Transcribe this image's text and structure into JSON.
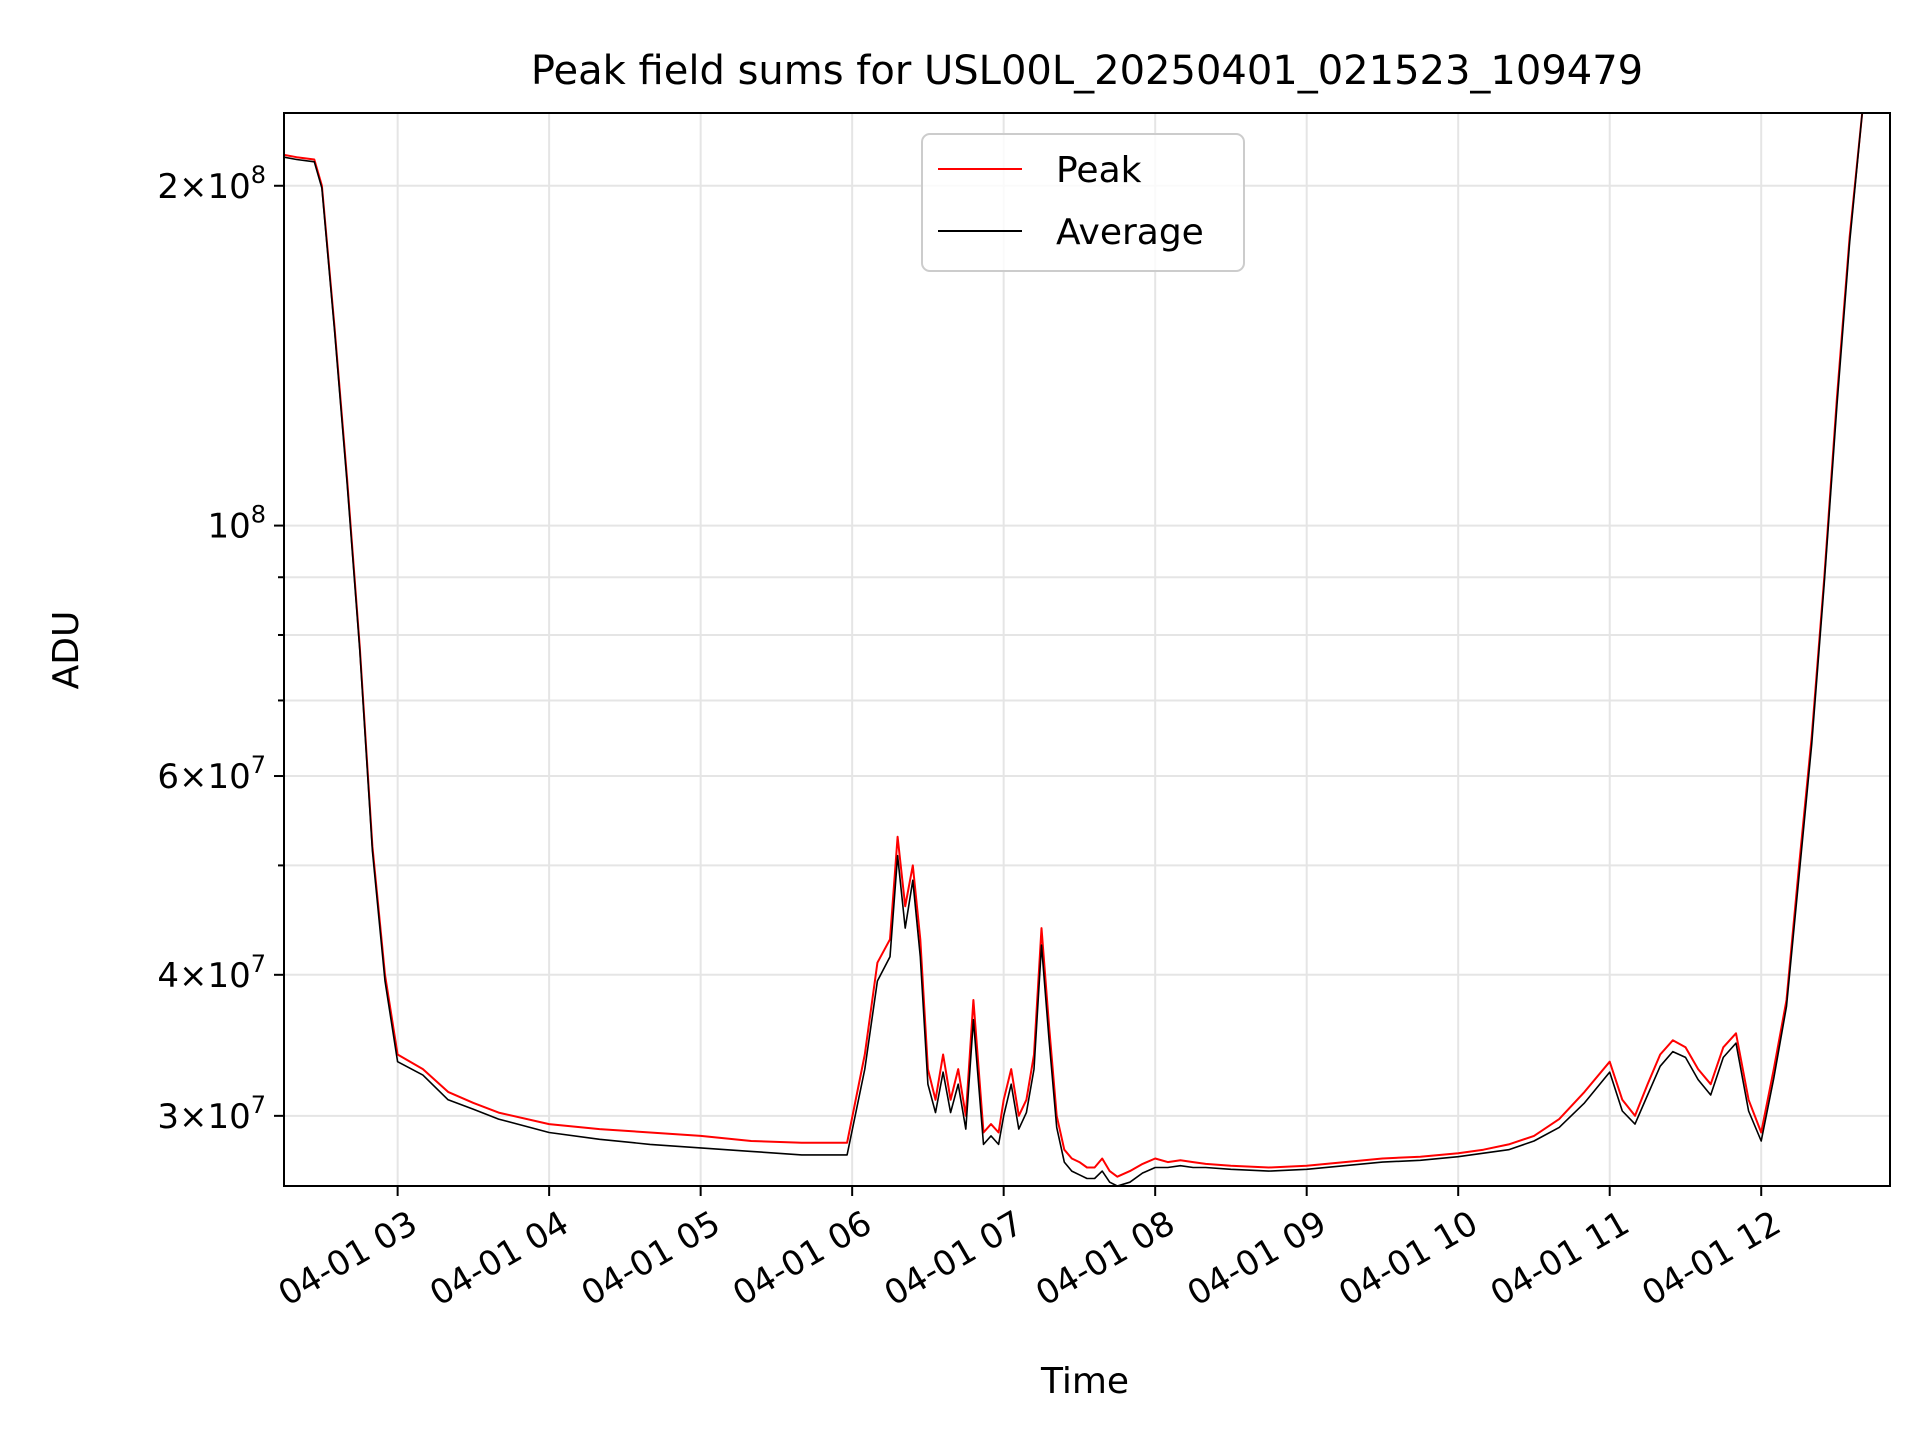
{
  "chart_data": {
    "type": "line",
    "title": "Peak field sums for USL00L_20250401_021523_109479",
    "xlabel": "Time",
    "ylabel": "ADU",
    "yscale": "log",
    "ylim": [
      26000000,
      232000000
    ],
    "xlim": [
      "04-01 02:15",
      "04-01 12:51"
    ],
    "grid": true,
    "legend_position": "upper center",
    "x_ticks": [
      {
        "t": "04-01 03:00",
        "label": "04-01 03"
      },
      {
        "t": "04-01 04:00",
        "label": "04-01 04"
      },
      {
        "t": "04-01 05:00",
        "label": "04-01 05"
      },
      {
        "t": "04-01 06:00",
        "label": "04-01 06"
      },
      {
        "t": "04-01 07:00",
        "label": "04-01 07"
      },
      {
        "t": "04-01 08:00",
        "label": "04-01 08"
      },
      {
        "t": "04-01 09:00",
        "label": "04-01 09"
      },
      {
        "t": "04-01 10:00",
        "label": "04-01 10"
      },
      {
        "t": "04-01 11:00",
        "label": "04-01 11"
      },
      {
        "t": "04-01 12:00",
        "label": "04-01 12"
      }
    ],
    "y_ticks": [
      {
        "value": 30000000,
        "mant": "3",
        "exp": "7"
      },
      {
        "value": 40000000,
        "mant": "4",
        "exp": "7"
      },
      {
        "value": 60000000,
        "mant": "6",
        "exp": "7"
      },
      {
        "value": 100000000,
        "mant": "",
        "exp": "8"
      },
      {
        "value": 200000000,
        "mant": "2",
        "exp": "8"
      }
    ],
    "y_minor_ticks": [
      50000000,
      70000000,
      80000000,
      90000000
    ],
    "series": [
      {
        "name": "Peak",
        "color": "#ff0000",
        "x": [
          "04-01 02:15",
          "04-01 02:20",
          "04-01 02:27",
          "04-01 02:30",
          "04-01 02:35",
          "04-01 02:40",
          "04-01 02:45",
          "04-01 02:50",
          "04-01 02:55",
          "04-01 03:00",
          "04-01 03:10",
          "04-01 03:20",
          "04-01 03:30",
          "04-01 03:40",
          "04-01 04:00",
          "04-01 04:20",
          "04-01 04:40",
          "04-01 05:00",
          "04-01 05:20",
          "04-01 05:40",
          "04-01 05:58",
          "04-01 06:05",
          "04-01 06:10",
          "04-01 06:15",
          "04-01 06:18",
          "04-01 06:21",
          "04-01 06:24",
          "04-01 06:27",
          "04-01 06:30",
          "04-01 06:33",
          "04-01 06:36",
          "04-01 06:39",
          "04-01 06:42",
          "04-01 06:45",
          "04-01 06:48",
          "04-01 06:52",
          "04-01 06:55",
          "04-01 06:58",
          "04-01 07:00",
          "04-01 07:03",
          "04-01 07:06",
          "04-01 07:09",
          "04-01 07:12",
          "04-01 07:15",
          "04-01 07:18",
          "04-01 07:21",
          "04-01 07:24",
          "04-01 07:27",
          "04-01 07:30",
          "04-01 07:33",
          "04-01 07:36",
          "04-01 07:39",
          "04-01 07:42",
          "04-01 07:45",
          "04-01 07:50",
          "04-01 07:55",
          "04-01 08:00",
          "04-01 08:05",
          "04-01 08:10",
          "04-01 08:15",
          "04-01 08:20",
          "04-01 08:30",
          "04-01 08:45",
          "04-01 09:00",
          "04-01 09:15",
          "04-01 09:30",
          "04-01 09:45",
          "04-01 10:00",
          "04-01 10:10",
          "04-01 10:20",
          "04-01 10:30",
          "04-01 10:40",
          "04-01 10:50",
          "04-01 11:00",
          "04-01 11:05",
          "04-01 11:10",
          "04-01 11:15",
          "04-01 11:20",
          "04-01 11:25",
          "04-01 11:30",
          "04-01 11:35",
          "04-01 11:40",
          "04-01 11:45",
          "04-01 11:50",
          "04-01 11:55",
          "04-01 12:00",
          "04-01 12:05",
          "04-01 12:10",
          "04-01 12:15",
          "04-01 12:20",
          "04-01 12:25",
          "04-01 12:30",
          "04-01 12:35",
          "04-01 12:40",
          "04-01 12:45",
          "04-01 12:48",
          "04-01 12:51"
        ],
        "y": [
          213000000,
          212000000,
          211000000,
          200000000,
          150000000,
          110000000,
          78000000,
          52000000,
          40000000,
          34000000,
          33000000,
          31500000,
          30800000,
          30200000,
          29500000,
          29200000,
          29000000,
          28800000,
          28500000,
          28400000,
          28400000,
          34000000,
          41000000,
          43000000,
          53000000,
          46000000,
          50000000,
          43000000,
          33000000,
          31000000,
          34000000,
          31000000,
          33000000,
          30000000,
          38000000,
          29000000,
          29500000,
          29000000,
          31000000,
          33000000,
          30000000,
          31000000,
          34000000,
          44000000,
          36000000,
          30000000,
          28000000,
          27500000,
          27300000,
          27000000,
          27000000,
          27500000,
          26800000,
          26500000,
          26800000,
          27200000,
          27500000,
          27300000,
          27400000,
          27300000,
          27200000,
          27100000,
          27000000,
          27100000,
          27300000,
          27500000,
          27600000,
          27800000,
          28000000,
          28300000,
          28800000,
          29800000,
          31500000,
          33500000,
          31000000,
          30000000,
          32000000,
          34000000,
          35000000,
          34500000,
          33000000,
          32000000,
          34500000,
          35500000,
          31000000,
          29000000,
          33000000,
          38000000,
          50000000,
          65000000,
          90000000,
          130000000,
          180000000,
          232000000,
          232000000,
          232000000,
          232000000
        ]
      },
      {
        "name": "Average",
        "color": "#000000",
        "x": [
          "04-01 02:15",
          "04-01 02:20",
          "04-01 02:27",
          "04-01 02:30",
          "04-01 02:35",
          "04-01 02:40",
          "04-01 02:45",
          "04-01 02:50",
          "04-01 02:55",
          "04-01 03:00",
          "04-01 03:10",
          "04-01 03:20",
          "04-01 03:30",
          "04-01 03:40",
          "04-01 04:00",
          "04-01 04:20",
          "04-01 04:40",
          "04-01 05:00",
          "04-01 05:20",
          "04-01 05:40",
          "04-01 05:58",
          "04-01 06:05",
          "04-01 06:10",
          "04-01 06:15",
          "04-01 06:18",
          "04-01 06:21",
          "04-01 06:24",
          "04-01 06:27",
          "04-01 06:30",
          "04-01 06:33",
          "04-01 06:36",
          "04-01 06:39",
          "04-01 06:42",
          "04-01 06:45",
          "04-01 06:48",
          "04-01 06:52",
          "04-01 06:55",
          "04-01 06:58",
          "04-01 07:00",
          "04-01 07:03",
          "04-01 07:06",
          "04-01 07:09",
          "04-01 07:12",
          "04-01 07:15",
          "04-01 07:18",
          "04-01 07:21",
          "04-01 07:24",
          "04-01 07:27",
          "04-01 07:30",
          "04-01 07:33",
          "04-01 07:36",
          "04-01 07:39",
          "04-01 07:42",
          "04-01 07:45",
          "04-01 07:50",
          "04-01 07:55",
          "04-01 08:00",
          "04-01 08:05",
          "04-01 08:10",
          "04-01 08:15",
          "04-01 08:20",
          "04-01 08:30",
          "04-01 08:45",
          "04-01 09:00",
          "04-01 09:15",
          "04-01 09:30",
          "04-01 09:45",
          "04-01 10:00",
          "04-01 10:10",
          "04-01 10:20",
          "04-01 10:30",
          "04-01 10:40",
          "04-01 10:50",
          "04-01 11:00",
          "04-01 11:05",
          "04-01 11:10",
          "04-01 11:15",
          "04-01 11:20",
          "04-01 11:25",
          "04-01 11:30",
          "04-01 11:35",
          "04-01 11:40",
          "04-01 11:45",
          "04-01 11:50",
          "04-01 11:55",
          "04-01 12:00",
          "04-01 12:05",
          "04-01 12:10",
          "04-01 12:15",
          "04-01 12:20",
          "04-01 12:25",
          "04-01 12:30",
          "04-01 12:35",
          "04-01 12:40",
          "04-01 12:45",
          "04-01 12:48",
          "04-01 12:51"
        ],
        "y": [
          212000000,
          211000000,
          210000000,
          199000000,
          149000000,
          109000000,
          77500000,
          51500000,
          39500000,
          33500000,
          32600000,
          31000000,
          30400000,
          29800000,
          29000000,
          28600000,
          28300000,
          28100000,
          27900000,
          27700000,
          27700000,
          33000000,
          39500000,
          41500000,
          51000000,
          44000000,
          48500000,
          41500000,
          32000000,
          30200000,
          32800000,
          30200000,
          32000000,
          29200000,
          36500000,
          28300000,
          28800000,
          28300000,
          30000000,
          32000000,
          29200000,
          30200000,
          33000000,
          42500000,
          35000000,
          29300000,
          27300000,
          26800000,
          26600000,
          26400000,
          26400000,
          26800000,
          26200000,
          26000000,
          26200000,
          26700000,
          27000000,
          27000000,
          27100000,
          27000000,
          27000000,
          26900000,
          26800000,
          26900000,
          27100000,
          27300000,
          27400000,
          27600000,
          27800000,
          28000000,
          28500000,
          29300000,
          30800000,
          32800000,
          30300000,
          29500000,
          31300000,
          33200000,
          34200000,
          33800000,
          32300000,
          31300000,
          33800000,
          34800000,
          30300000,
          28500000,
          32400000,
          37500000,
          49000000,
          64000000,
          89000000,
          128000000,
          178000000,
          232000000,
          232000000,
          232000000,
          232000000
        ]
      }
    ]
  }
}
